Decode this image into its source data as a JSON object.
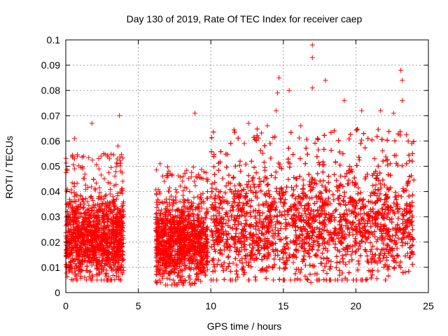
{
  "chart_data": {
    "type": "scatter",
    "title": "Day 130 of 2019, Rate Of TEC Index for receiver caep",
    "xlabel": "GPS time / hours",
    "ylabel": "ROTI / TECUs",
    "xlim": [
      0,
      25
    ],
    "ylim": [
      0,
      0.1
    ],
    "xticks": [
      0,
      5,
      10,
      15,
      20,
      25
    ],
    "xtick_labels": [
      "0",
      "5",
      "10",
      "15",
      "20",
      "25"
    ],
    "yticks": [
      0,
      0.01,
      0.02,
      0.03,
      0.04,
      0.05,
      0.06,
      0.07,
      0.08,
      0.09,
      0.1
    ],
    "ytick_labels": [
      "0",
      "0.01",
      "0.02",
      "0.03",
      "0.04",
      "0.05",
      "0.06",
      "0.07",
      "0.08",
      "0.09",
      "0.1"
    ],
    "grid": true,
    "marker": "+",
    "series_color": "#ff0000",
    "segments": [
      {
        "name": "segment-1",
        "x_start": 0.0,
        "x_end": 4.0,
        "y_low": 0.008,
        "y_high": 0.04,
        "y_center": 0.022
      },
      {
        "name": "segment-2",
        "x_start": 6.2,
        "x_end": 9.8,
        "y_low": 0.006,
        "y_high": 0.035,
        "y_center": 0.02
      },
      {
        "name": "segment-3",
        "x_start": 10.0,
        "x_end": 24.0,
        "y_low": 0.008,
        "y_high": 0.05,
        "y_center": 0.027
      }
    ],
    "outliers": [
      {
        "x": 1.8,
        "y": 0.067
      },
      {
        "x": 0.6,
        "y": 0.061
      },
      {
        "x": 3.7,
        "y": 0.07
      },
      {
        "x": 3.6,
        "y": 0.058
      },
      {
        "x": 2.6,
        "y": 0.055
      },
      {
        "x": 6.5,
        "y": 0.051
      },
      {
        "x": 8.9,
        "y": 0.071
      },
      {
        "x": 7.2,
        "y": 0.047
      },
      {
        "x": 12.6,
        "y": 0.067
      },
      {
        "x": 14.7,
        "y": 0.085
      },
      {
        "x": 14.6,
        "y": 0.079
      },
      {
        "x": 15.4,
        "y": 0.08
      },
      {
        "x": 14.5,
        "y": 0.072
      },
      {
        "x": 17.0,
        "y": 0.098
      },
      {
        "x": 17.0,
        "y": 0.093
      },
      {
        "x": 17.0,
        "y": 0.081
      },
      {
        "x": 17.9,
        "y": 0.084
      },
      {
        "x": 19.2,
        "y": 0.076
      },
      {
        "x": 20.4,
        "y": 0.072
      },
      {
        "x": 23.1,
        "y": 0.088
      },
      {
        "x": 23.2,
        "y": 0.084
      },
      {
        "x": 23.2,
        "y": 0.076
      },
      {
        "x": 22.6,
        "y": 0.071
      },
      {
        "x": 21.7,
        "y": 0.072
      },
      {
        "x": 16.2,
        "y": 0.066
      },
      {
        "x": 13.9,
        "y": 0.066
      },
      {
        "x": 16.9,
        "y": 0.004
      },
      {
        "x": 3.8,
        "y": 0.005
      },
      {
        "x": 8.0,
        "y": 0.004
      }
    ]
  }
}
